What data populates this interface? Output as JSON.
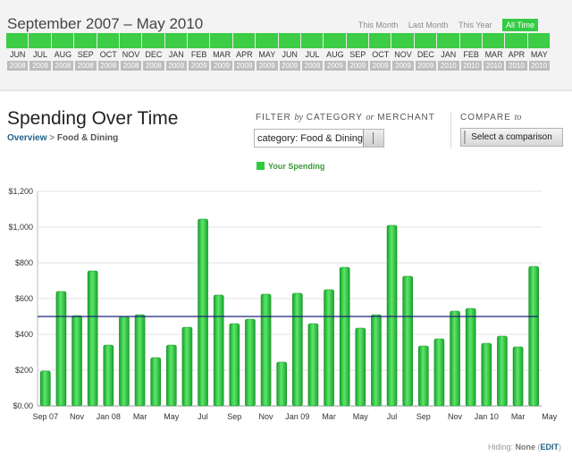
{
  "timeline": {
    "range_title": "September 2007 – May 2010",
    "period_links": [
      "This Month",
      "Last Month",
      "This Year",
      "All Time"
    ],
    "active_period": "All Time",
    "months": [
      {
        "m": "JUN",
        "y": "2008"
      },
      {
        "m": "JUL",
        "y": "2008"
      },
      {
        "m": "AUG",
        "y": "2008"
      },
      {
        "m": "SEP",
        "y": "2008"
      },
      {
        "m": "OCT",
        "y": "2008"
      },
      {
        "m": "NOV",
        "y": "2008"
      },
      {
        "m": "DEC",
        "y": "2008"
      },
      {
        "m": "JAN",
        "y": "2009"
      },
      {
        "m": "FEB",
        "y": "2009"
      },
      {
        "m": "MAR",
        "y": "2009"
      },
      {
        "m": "APR",
        "y": "2009"
      },
      {
        "m": "MAY",
        "y": "2009"
      },
      {
        "m": "JUN",
        "y": "2009"
      },
      {
        "m": "JUL",
        "y": "2009"
      },
      {
        "m": "AUG",
        "y": "2009"
      },
      {
        "m": "SEP",
        "y": "2009"
      },
      {
        "m": "OCT",
        "y": "2009"
      },
      {
        "m": "NOV",
        "y": "2009"
      },
      {
        "m": "DEC",
        "y": "2009"
      },
      {
        "m": "JAN",
        "y": "2010"
      },
      {
        "m": "FEB",
        "y": "2010"
      },
      {
        "m": "MAR",
        "y": "2010"
      },
      {
        "m": "APR",
        "y": "2010"
      },
      {
        "m": "MAY",
        "y": "2010"
      }
    ]
  },
  "header": {
    "title": "Spending Over Time",
    "breadcrumb_root": "Overview",
    "breadcrumb_sep": ">",
    "breadcrumb_current": "Food & Dining"
  },
  "filter": {
    "label_a": "FILTER",
    "label_by": "by",
    "label_b": "CATEGORY",
    "label_or": "or",
    "label_c": "MERCHANT",
    "value": "category: Food & Dining"
  },
  "compare": {
    "label": "COMPARE",
    "label_to": "to",
    "button": "Select a comparison"
  },
  "legend": {
    "label": "Your Spending",
    "color": "#2ecc40"
  },
  "chart_data": {
    "type": "bar",
    "series": [
      {
        "name": "Your Spending",
        "color": "#2ecc40",
        "values": [
          195,
          640,
          505,
          755,
          340,
          500,
          510,
          270,
          340,
          440,
          1045,
          620,
          460,
          485,
          625,
          245,
          630,
          460,
          650,
          775,
          435,
          510,
          1010,
          725,
          335,
          375,
          530,
          545,
          350,
          390,
          330,
          780
        ]
      }
    ],
    "reference_line": {
      "value": 500,
      "color": "#1a237e"
    },
    "xtick_labels": [
      "Sep 07",
      "Nov",
      "Jan 08",
      "Mar",
      "May",
      "Jul",
      "Sep",
      "Nov",
      "Jan 09",
      "Mar",
      "May",
      "Jul",
      "Sep",
      "Nov",
      "Jan 10",
      "Mar",
      "May"
    ],
    "ytick_labels": [
      "$0.00",
      "$200",
      "$400",
      "$600",
      "$800",
      "$1,000",
      "$1,200"
    ],
    "ylim": [
      0,
      1200
    ],
    "grid": true
  },
  "footer": {
    "hiding_label": "Hiding:",
    "hiding_value": "None",
    "edit_label": "EDIT"
  }
}
